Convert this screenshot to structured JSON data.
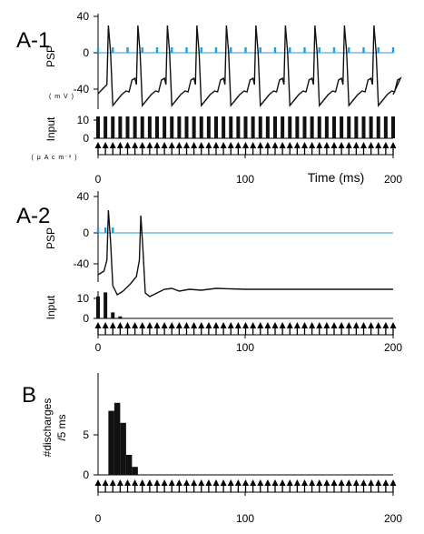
{
  "panels": {
    "a1": {
      "label": "A-1",
      "psp_ylabel": "PSP",
      "psp_unit": "( m V )",
      "input_ylabel": "Input",
      "input_unit": "( μ A c m⁻² )"
    },
    "a2": {
      "label": "A-2",
      "psp_ylabel": "PSP",
      "input_ylabel": "Input"
    },
    "b": {
      "label": "B",
      "ylabel_line1": "#discharges",
      "ylabel_line2": "/5 ms"
    }
  },
  "time_axis_title": "Time (ms)",
  "psp_ticks": [
    "40",
    "0",
    "-40"
  ],
  "input_ticks": [
    "10",
    "0"
  ],
  "b_ticks": [
    "5",
    "0"
  ],
  "x_ticks": [
    "0",
    "100",
    "200"
  ],
  "colors": {
    "trace": "#111111",
    "reference": "#1fa0d8",
    "bars": "#111111"
  },
  "chart_data": [
    {
      "id": "A-1",
      "type": "line",
      "title": "",
      "xlabel": "Time (ms)",
      "ylabel": "PSP",
      "xlim": [
        0,
        200
      ],
      "ylim": [
        -65,
        45
      ],
      "series": [
        {
          "spike_times_ms": [
            7,
            27,
            47,
            67,
            87,
            107,
            127,
            147,
            167,
            187
          ],
          "peak_mV": 30,
          "trough_mV": -58
        }
      ],
      "reference_pulse_times_ms": [
        0,
        10,
        20,
        30,
        40,
        50,
        60,
        70,
        80,
        90,
        100,
        110,
        120,
        130,
        140,
        150,
        160,
        170,
        180,
        190,
        200
      ],
      "input": {
        "ylabel": "Input",
        "ylim": [
          0,
          12
        ],
        "pulse_times_ms": [
          0,
          5,
          10,
          15,
          20,
          25,
          30,
          35,
          40,
          45,
          50,
          55,
          60,
          65,
          70,
          75,
          80,
          85,
          90,
          95,
          100,
          105,
          110,
          115,
          120,
          125,
          130,
          135,
          140,
          145,
          150,
          155,
          160,
          165,
          170,
          175,
          180,
          185,
          190,
          195,
          200
        ],
        "pulse_amplitude": 12
      },
      "stimulus_times_ms": [
        0,
        5,
        10,
        15,
        20,
        25,
        30,
        35,
        40,
        45,
        50,
        55,
        60,
        65,
        70,
        75,
        80,
        85,
        90,
        95,
        100,
        105,
        110,
        115,
        120,
        125,
        130,
        135,
        140,
        145,
        150,
        155,
        160,
        165,
        170,
        175,
        180,
        185,
        190,
        195,
        200
      ]
    },
    {
      "id": "A-2",
      "type": "line",
      "title": "",
      "xlabel": "",
      "ylabel": "PSP",
      "xlim": [
        0,
        200
      ],
      "ylim": [
        -75,
        45
      ],
      "series": [
        {
          "spike_times_ms": [
            7,
            29
          ],
          "peak_mV": 25,
          "resting_mV": -62
        }
      ],
      "reference_pulse_times_ms": [
        0,
        5,
        10
      ],
      "input": {
        "ylabel": "Input",
        "ylim": [
          0,
          14
        ],
        "pulse_times_ms": [
          0,
          5,
          10,
          15
        ],
        "pulse_amplitudes": [
          11,
          13,
          3,
          1
        ]
      },
      "stimulus_times_ms": [
        0,
        5,
        10,
        15,
        20,
        25,
        30,
        35,
        40,
        45,
        50,
        55,
        60,
        65,
        70,
        75,
        80,
        85,
        90,
        95,
        100,
        105,
        110,
        115,
        120,
        125,
        130,
        135,
        140,
        145,
        150,
        155,
        160,
        165,
        170,
        175,
        180,
        185,
        190,
        195,
        200
      ]
    },
    {
      "id": "B",
      "type": "bar",
      "title": "",
      "xlabel": "",
      "ylabel": "#discharges /5 ms",
      "xlim": [
        0,
        200
      ],
      "ylim": [
        0,
        10
      ],
      "bin_width_ms": 5,
      "bin_starts_ms": [
        7,
        11,
        15,
        19,
        23
      ],
      "values": [
        8,
        9,
        6.5,
        2.5,
        1
      ],
      "stimulus_times_ms": [
        0,
        5,
        10,
        15,
        20,
        25,
        30,
        35,
        40,
        45,
        50,
        55,
        60,
        65,
        70,
        75,
        80,
        85,
        90,
        95,
        100,
        105,
        110,
        115,
        120,
        125,
        130,
        135,
        140,
        145,
        150,
        155,
        160,
        165,
        170,
        175,
        180,
        185,
        190,
        195,
        200
      ]
    }
  ]
}
